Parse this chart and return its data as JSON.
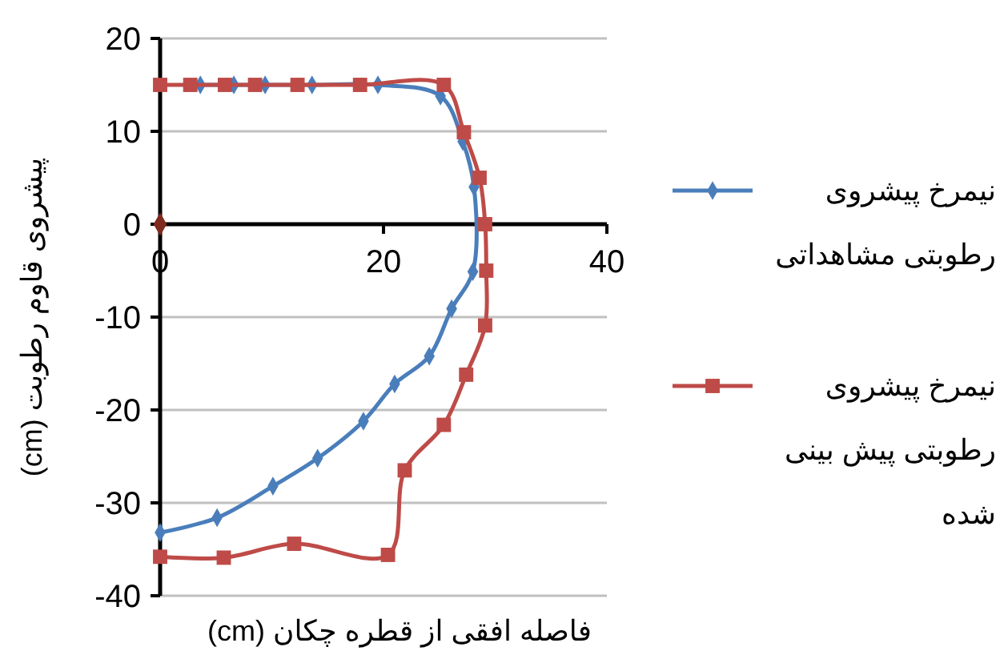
{
  "chart_data": {
    "type": "line",
    "xlabel": "فاصله افقی از قطره چکان (cm)",
    "ylabel": "پیشروی قاوم رطوبت (cm)",
    "xlim": [
      0,
      40
    ],
    "xticks": [
      0,
      20,
      40
    ],
    "ylim": [
      -40,
      20
    ],
    "yticks": [
      -40,
      -30,
      -20,
      -10,
      0,
      10,
      20
    ],
    "grid": "y",
    "legend": "right",
    "series": [
      {
        "name": "نیمرخ پیشروی رطوبتی مشاهداتی",
        "color": "#4a7ebb",
        "marker": "diamond",
        "x": [
          3.6,
          6.6,
          9.4,
          13.6,
          19.5,
          25.1,
          27.1,
          28.1,
          28,
          26.1,
          24.1,
          21,
          18.2,
          14.1,
          10.1,
          5.1,
          0
        ],
        "values": [
          15,
          15,
          15,
          15,
          15,
          13.8,
          8.9,
          4,
          -5.1,
          -9.1,
          -14.2,
          -17.2,
          -21.2,
          -25.2,
          -28.2,
          -31.6,
          -33.2
        ]
      },
      {
        "name": "نیمرخ پیشروی رطوبتی پیش بینی شده",
        "color": "#be4b48",
        "marker": "square",
        "x": [
          0,
          2.7,
          5.8,
          8.5,
          12.3,
          17.9,
          25.4,
          27.2,
          28.6,
          29.1,
          29.2,
          29.1,
          27.4,
          25.4,
          21.9,
          20.4,
          12,
          5.7,
          0
        ],
        "values": [
          15,
          15,
          15,
          15,
          15,
          15,
          15,
          9.9,
          5,
          0,
          -5,
          -10.9,
          -16.2,
          -21.6,
          -26.5,
          -35.6,
          -34.4,
          -35.9,
          -35.8
        ]
      },
      {
        "type": "scatter",
        "color": "#7f2a1f",
        "marker": "diamond",
        "x": [
          0
        ],
        "values": [
          0
        ]
      }
    ]
  }
}
